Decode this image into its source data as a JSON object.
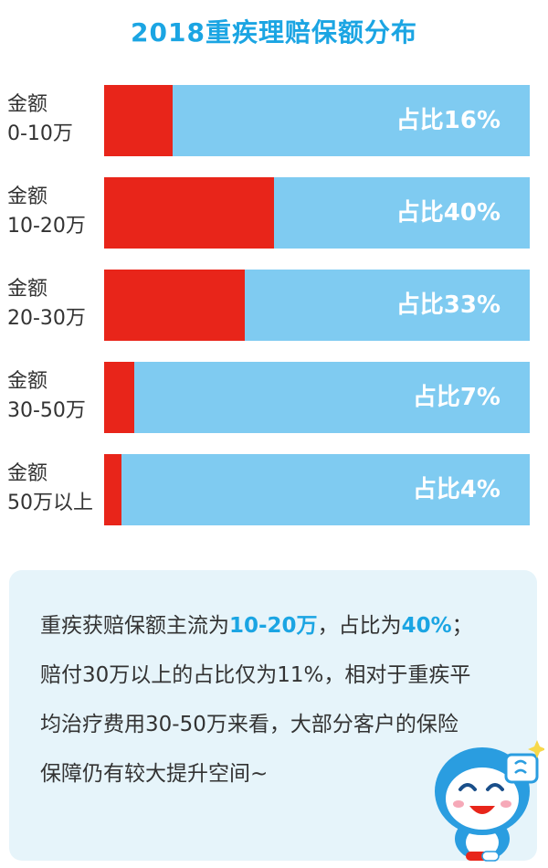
{
  "title": "2018重疾理赔保额分布",
  "chart_data": {
    "type": "bar",
    "orientation": "horizontal",
    "title": "2018重疾理赔保额分布",
    "categories": [
      "金额 0-10万",
      "金额 10-20万",
      "金额 20-30万",
      "金额 30-50万",
      "金额 50万以上"
    ],
    "category_lines": [
      [
        "金额",
        "0-10万"
      ],
      [
        "金额",
        "10-20万"
      ],
      [
        "金额",
        "20-30万"
      ],
      [
        "金额",
        "30-50万"
      ],
      [
        "金额",
        "50万以上"
      ]
    ],
    "values": [
      16,
      40,
      33,
      7,
      4
    ],
    "value_labels": [
      "占比16%",
      "占比40%",
      "占比33%",
      "占比7%",
      "占比4%"
    ],
    "unit": "%",
    "xlim": [
      0,
      100
    ],
    "grid": false,
    "colors": {
      "fill": "#e8251a",
      "track": "#7fcbf1",
      "title": "#1ba5e3"
    }
  },
  "note": {
    "line1_a": "重疾获赔保额主流为",
    "line1_hl1": "10-20万",
    "line1_b": "，占比为",
    "line1_hl2": "40%",
    "line1_c": "；",
    "line2": "赔付30万以上的占比仅为11%，相对于重疾平",
    "line3": "均治疗费用30-50万来看，大部分客户的保险",
    "line4": "保障仍有较大提升空间~"
  },
  "mascot": {
    "icon": "mascot-icon",
    "colors": {
      "body": "#2a9de0",
      "face": "#ffffff"
    }
  }
}
